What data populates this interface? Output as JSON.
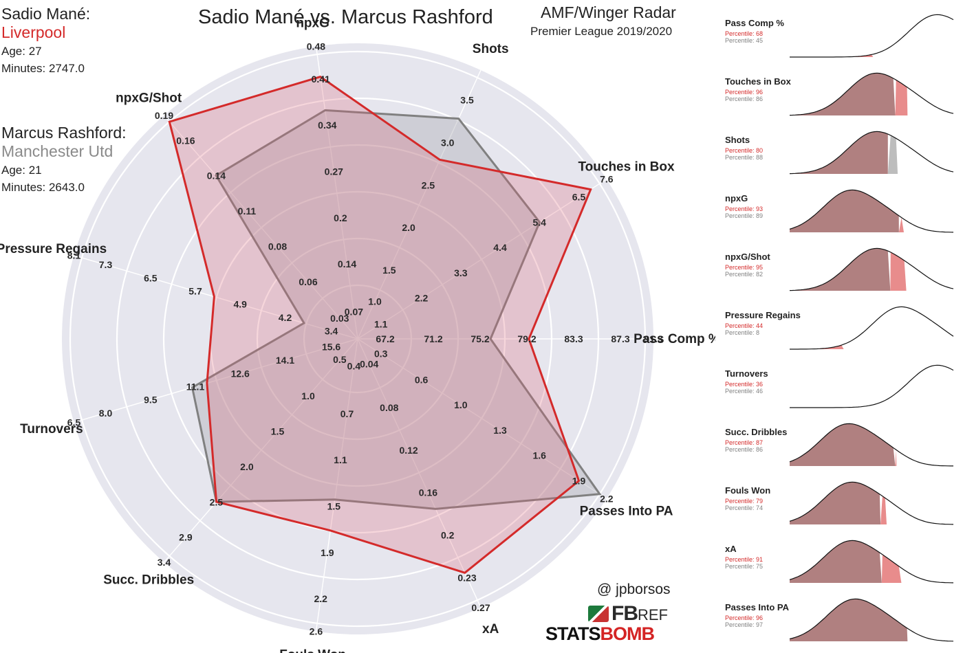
{
  "chart_title": "Sadio Mané vs. Marcus Rashford",
  "radar_title": "AMF/Winger Radar",
  "radar_subtitle": "Premier League 2019/2020",
  "player1": {
    "name": "Sadio Mané:",
    "club": "Liverpool",
    "age": "Age: 27",
    "minutes": "Minutes: 2747.0",
    "color": "#d42a2a"
  },
  "player2": {
    "name": "Marcus Rashford:",
    "club": "Manchester Utd",
    "age": "Age: 21",
    "minutes": "Minutes: 2643.0",
    "color": "#808080"
  },
  "credits": {
    "handle": "@ jpborsos",
    "fbref_fb": "FB",
    "fbref_ref": "REF",
    "statsbomb_stats": "STATS",
    "statsbomb_bomb": "BOMB"
  },
  "chart_data": {
    "type": "radar",
    "center_value_note": "",
    "axes": [
      {
        "label": "Pass Comp %",
        "ticks": [
          "67.2",
          "71.2",
          "75.2",
          "79.2",
          "83.3",
          "87.3",
          "91.3"
        ],
        "min": 63.1,
        "max": 91.3,
        "p1": 79.2,
        "p2": 75.2
      },
      {
        "label": "Shots",
        "ticks": [
          "1.0",
          "1.5",
          "2.0",
          "2.5",
          "3.0",
          "3.5"
        ],
        "min": 0.5,
        "max": 3.5,
        "p1": 2.5,
        "p2": 3.0
      },
      {
        "label": "npxG",
        "ticks": [
          "0.07",
          "0.14",
          "0.2",
          "0.27",
          "0.34",
          "0.41",
          "0.48"
        ],
        "min": 0.0,
        "max": 0.48,
        "p1": 0.44,
        "p2": 0.38
      },
      {
        "label": "npxG/Shot",
        "ticks": [
          "0.03",
          "0.06",
          "0.08",
          "0.11",
          "0.14",
          "0.16",
          "0.19"
        ],
        "min": 0.0,
        "max": 0.19,
        "p1": 0.19,
        "p2": 0.14
      },
      {
        "label": "Pressure Regains",
        "ticks": [
          "3.4",
          "4.2",
          "4.9",
          "5.7",
          "6.5",
          "7.3",
          "8.1"
        ],
        "min": 2.6,
        "max": 8.1,
        "p1": 5.3,
        "p2": 3.4
      },
      {
        "label": "Turnovers",
        "ticks": [
          "15.6",
          "14.1",
          "12.6",
          "11.1",
          "9.5",
          "8.0",
          "6.5"
        ],
        "min": 17.1,
        "max": 6.5,
        "p1": 11.6,
        "p2": 11.0
      },
      {
        "label": "Succ. Dribbles",
        "ticks": [
          "0.5",
          "1.0",
          "1.5",
          "2.0",
          "2.5",
          "2.9",
          "3.4"
        ],
        "min": 0.0,
        "max": 3.4,
        "p1": 2.5,
        "p2": 2.5
      },
      {
        "label": "Fouls Won",
        "ticks": [
          "0.4",
          "0.7",
          "1.1",
          "1.5",
          "1.9",
          "2.2",
          "2.6"
        ],
        "min": 0.0,
        "max": 2.6,
        "p1": 1.7,
        "p2": 1.4
      },
      {
        "label": "xA",
        "ticks": [
          "0.04",
          "0.08",
          "0.12",
          "0.16",
          "0.2",
          "0.23",
          "0.27"
        ],
        "min": 0.0,
        "max": 0.27,
        "p1": 0.24,
        "p2": 0.17
      },
      {
        "label": "Passes Into PA",
        "ticks": [
          "0.3",
          "0.6",
          "1.0",
          "1.3",
          "1.6",
          "1.9",
          "2.2"
        ],
        "min": 0.0,
        "max": 2.2,
        "p1": 2.0,
        "p2": 2.2
      }
    ],
    "percentile_panels": [
      {
        "label": "Pass Comp %",
        "p1_text": "Percentile: 68",
        "p2_text": "Percentile: 45",
        "p1": 68,
        "p2": 45,
        "peak": 0.72
      },
      {
        "label": "Touches in Box",
        "p1_text": "Percentile: 96",
        "p2_text": "Percentile: 86",
        "p1": 96,
        "p2": 86,
        "peak": 0.35
      },
      {
        "label": "Shots",
        "p1_text": "Percentile: 80",
        "p2_text": "Percentile: 88",
        "p1": 80,
        "p2": 88,
        "peak": 0.35
      },
      {
        "label": "npxG",
        "p1_text": "Percentile: 93",
        "p2_text": "Percentile: 89",
        "p1": 93,
        "p2": 89,
        "peak": 0.2
      },
      {
        "label": "npxG/Shot",
        "p1_text": "Percentile: 95",
        "p2_text": "Percentile: 82",
        "p1": 95,
        "p2": 82,
        "peak": 0.35
      },
      {
        "label": "Pressure Regains",
        "p1_text": "Percentile: 44",
        "p2_text": "Percentile: 8",
        "p1": 44,
        "p2": 8,
        "peak": 0.5
      },
      {
        "label": "Turnovers",
        "p1_text": "Percentile: 36",
        "p2_text": "Percentile: 46",
        "p1": 36,
        "p2": 46,
        "peak": 0.72
      },
      {
        "label": "Succ. Dribbles",
        "p1_text": "Percentile: 87",
        "p2_text": "Percentile: 86",
        "p1": 87,
        "p2": 86,
        "peak": 0.18
      },
      {
        "label": "Fouls Won",
        "p1_text": "Percentile: 79",
        "p2_text": "Percentile: 74",
        "p1": 79,
        "p2": 74,
        "peak": 0.2
      },
      {
        "label": "xA",
        "p1_text": "Percentile: 91",
        "p2_text": "Percentile: 75",
        "p1": 91,
        "p2": 75,
        "peak": 0.2
      },
      {
        "label": "Passes Into PA",
        "p1_text": "Percentile: 96",
        "p2_text": "Percentile: 97",
        "p1": 96,
        "p2": 97,
        "peak": 0.22
      }
    ],
    "extra_axis": {
      "label": "Touches in Box",
      "ticks": [
        "1.1",
        "2.2",
        "3.3",
        "4.4",
        "5.4",
        "6.5",
        "7.6"
      ],
      "min": 0.0,
      "max": 7.6,
      "p1": 7.3,
      "p2": 5.6
    }
  }
}
